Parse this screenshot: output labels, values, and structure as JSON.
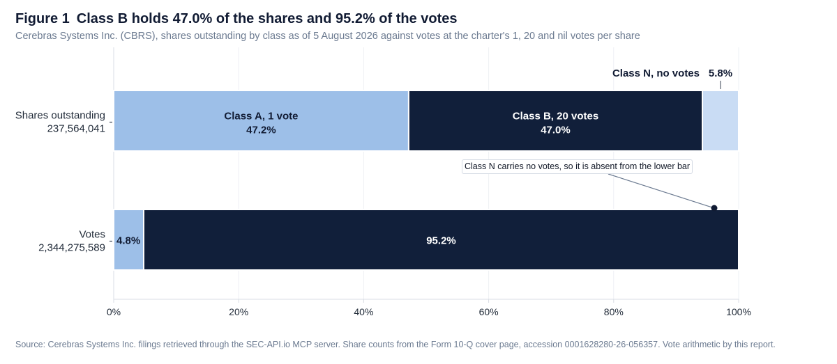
{
  "figure": {
    "label": "Figure 1",
    "title": "Class B holds 47.0% of the shares and 95.2% of the votes",
    "subtitle": "Cerebras Systems Inc. (CBRS), shares outstanding by class as of 5 August 2026 against votes at the charter's 1, 20 and nil votes per share",
    "source": "Source: Cerebras Systems Inc. filings retrieved through the SEC-API.io MCP server. Share counts from the Form 10-Q cover page, accession 0001628280-26-056357. Vote arithmetic by this report."
  },
  "chart_data": {
    "type": "bar",
    "orientation": "horizontal",
    "stacked": true,
    "grid": true,
    "xlim": [
      0,
      100
    ],
    "x_tick_labels": [
      "0%",
      "20%",
      "40%",
      "60%",
      "80%",
      "100%"
    ],
    "x_ticks": [
      0,
      20,
      40,
      60,
      80,
      100
    ],
    "categories": [
      {
        "label": "Shares outstanding",
        "total": "237,564,041"
      },
      {
        "label": "Votes",
        "total": "2,344,275,589"
      }
    ],
    "series": [
      {
        "name": "Class A, 1 vote",
        "color": "#9dbfe8",
        "values": [
          47.2,
          4.8
        ],
        "labels": [
          "47.2%",
          "4.8%"
        ]
      },
      {
        "name": "Class B, 20 votes",
        "color": "#111f3a",
        "values": [
          47.0,
          95.2
        ],
        "labels": [
          "47.0%",
          "95.2%"
        ]
      },
      {
        "name": "Class N, no votes",
        "color": "#c9dcf4",
        "values": [
          5.8,
          0
        ],
        "labels": [
          "5.8%",
          ""
        ]
      }
    ],
    "annotation": {
      "text": "Class N carries no votes, so it is absent from the lower bar"
    }
  }
}
